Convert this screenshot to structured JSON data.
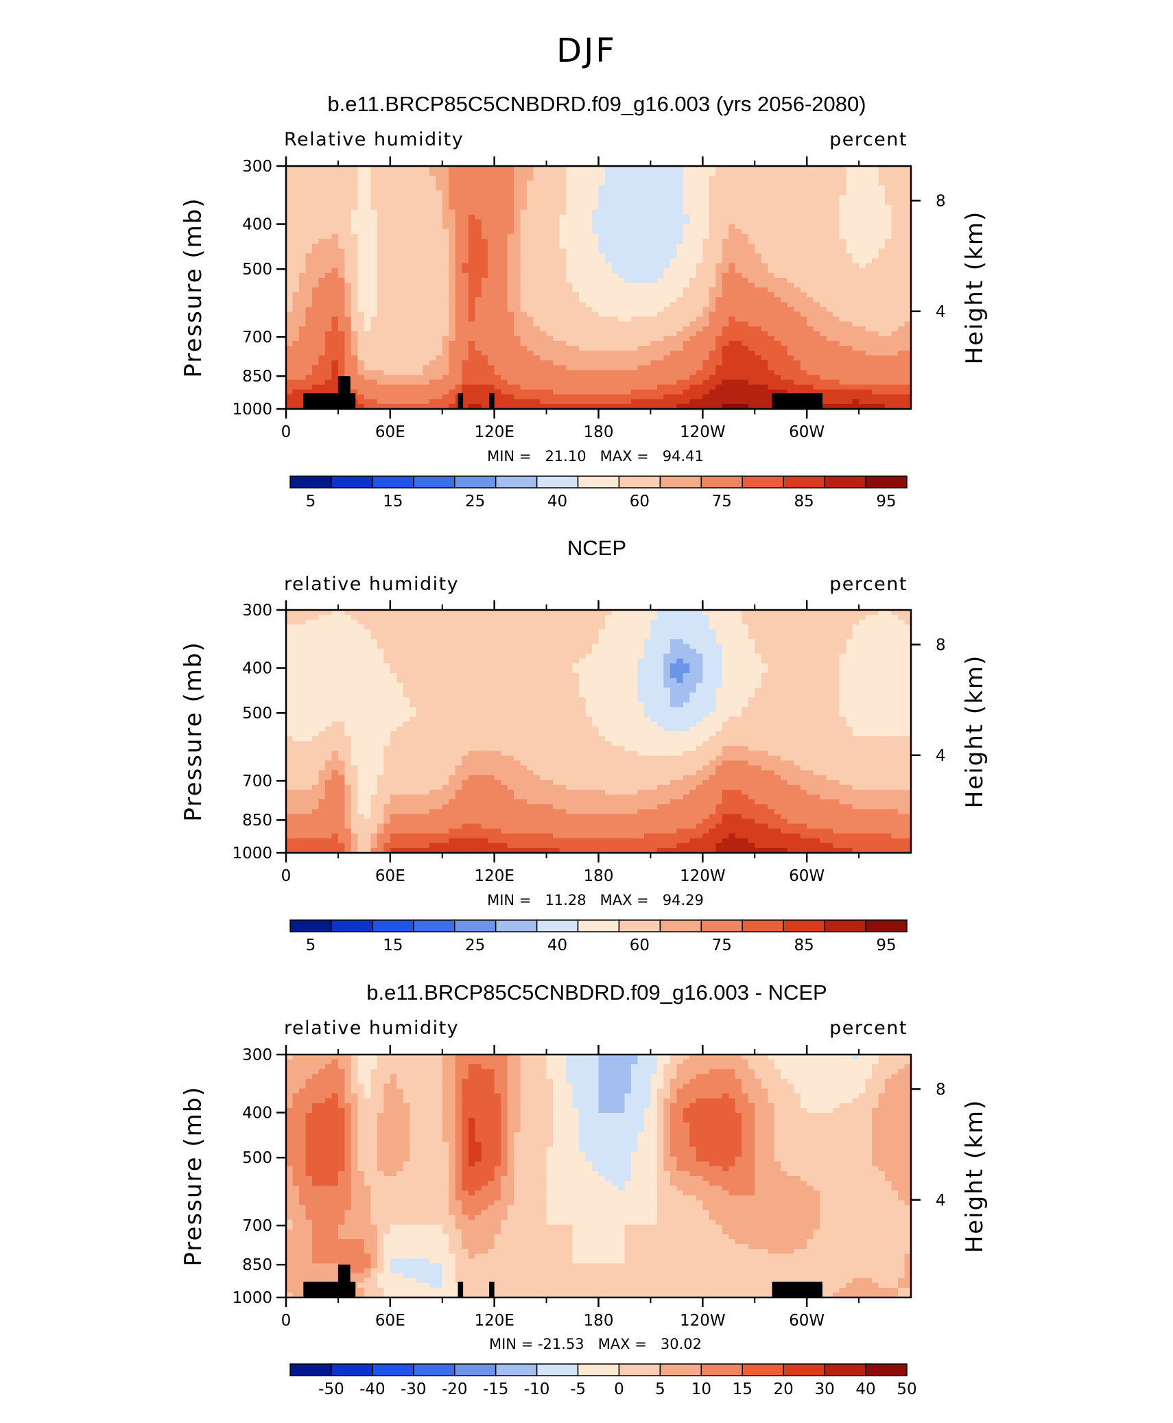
{
  "figure": {
    "title": "DJF",
    "colors": {
      "rh_scale": [
        "#001a8c",
        "#0a35c8",
        "#1f54e6",
        "#3a6fe8",
        "#6c95ea",
        "#a3bff0",
        "#d4e4f8",
        "#fde8d4",
        "#fbcdb0",
        "#f6ab88",
        "#f08660",
        "#e7603a",
        "#d63d1c",
        "#b5220f",
        "#8a0e06"
      ],
      "diff_scale": [
        "#001a8c",
        "#0a35c8",
        "#1f54e6",
        "#3a6fe8",
        "#6c95ea",
        "#a3bff0",
        "#d4e4f8",
        "#fde8d4",
        "#fbcdb0",
        "#f6ab88",
        "#f08660",
        "#e7603a",
        "#d63d1c",
        "#b5220f",
        "#8a0e06"
      ]
    }
  },
  "panels": [
    {
      "title": "b.e11.BRCP85C5CNBDRD.f09_g16.003 (yrs 2056-2080)",
      "left_label": "Relative humidity",
      "right_label": "percent",
      "y_axis_label": "Pressure (mb)",
      "y2_axis_label": "Height (km)",
      "min_max": "MIN =   21.10   MAX =   94.41",
      "colorbar_labels": [
        "5",
        "15",
        "25",
        "40",
        "60",
        "75",
        "85",
        "95"
      ]
    },
    {
      "title": "NCEP",
      "left_label": "relative humidity",
      "right_label": "percent",
      "y_axis_label": "Pressure (mb)",
      "y2_axis_label": "Height (km)",
      "min_max": "MIN =   11.28   MAX =   94.29",
      "colorbar_labels": [
        "5",
        "15",
        "25",
        "40",
        "60",
        "75",
        "85",
        "95"
      ]
    },
    {
      "title": "b.e11.BRCP85C5CNBDRD.f09_g16.003 - NCEP",
      "left_label": "relative humidity",
      "right_label": "percent",
      "y_axis_label": "Pressure (mb)",
      "y2_axis_label": "Height (km)",
      "min_max": "MIN = -21.53   MAX =   30.02",
      "colorbar_labels": [
        "-50",
        "-40",
        "-30",
        "-20",
        "-15",
        "-10",
        "-5",
        "0",
        "5",
        "10",
        "15",
        "20",
        "30",
        "40",
        "50"
      ]
    }
  ],
  "chart_data": [
    {
      "type": "heatmap",
      "title": "b.e11.BRCP85C5CNBDRD.f09_g16.003 (yrs 2056-2080)",
      "xlabel": "",
      "ylabel": "Pressure (mb)",
      "y2label": "Height (km)",
      "x_ticks": [
        "0",
        "60E",
        "120E",
        "180",
        "120W",
        "60W"
      ],
      "x_tick_values": [
        0,
        60,
        120,
        180,
        240,
        300
      ],
      "xlim": [
        0,
        360
      ],
      "y_ticks": [
        "300",
        "400",
        "500",
        "700",
        "850",
        "1000"
      ],
      "y_tick_values": [
        300,
        400,
        500,
        700,
        850,
        1000
      ],
      "ylim": [
        1000,
        300
      ],
      "y_scale": "log",
      "y2_ticks": [
        "4",
        "8"
      ],
      "y2_tick_values": [
        4,
        8
      ],
      "min": 21.1,
      "max": 94.41,
      "contour_levels": [
        5,
        10,
        15,
        20,
        25,
        30,
        40,
        50,
        60,
        65,
        75,
        80,
        85,
        90,
        95
      ],
      "longitudes": [
        0,
        15,
        30,
        45,
        60,
        75,
        90,
        105,
        120,
        135,
        150,
        165,
        180,
        195,
        210,
        225,
        240,
        255,
        270,
        285,
        300,
        315,
        330,
        345
      ],
      "pressure_levels": [
        1000,
        925,
        850,
        700,
        600,
        500,
        400,
        300
      ],
      "values": [
        [
          84,
          86,
          88,
          80,
          76,
          77,
          80,
          86,
          85,
          84,
          83,
          82,
          82,
          83,
          85,
          86,
          88,
          91,
          90,
          89,
          87,
          87,
          88,
          86
        ],
        [
          80,
          82,
          84,
          74,
          70,
          70,
          72,
          84,
          82,
          78,
          76,
          74,
          74,
          75,
          77,
          80,
          84,
          88,
          88,
          86,
          83,
          81,
          82,
          80
        ],
        [
          72,
          76,
          82,
          62,
          60,
          60,
          63,
          78,
          76,
          70,
          68,
          66,
          66,
          66,
          68,
          72,
          78,
          85,
          83,
          80,
          76,
          72,
          70,
          70
        ],
        [
          62,
          68,
          80,
          50,
          56,
          56,
          58,
          75,
          72,
          64,
          60,
          58,
          56,
          56,
          58,
          61,
          67,
          80,
          78,
          74,
          68,
          64,
          62,
          60
        ],
        [
          58,
          66,
          74,
          46,
          54,
          54,
          56,
          76,
          72,
          60,
          56,
          52,
          48,
          45,
          46,
          52,
          58,
          72,
          70,
          66,
          62,
          58,
          56,
          56
        ],
        [
          56,
          62,
          66,
          44,
          56,
          54,
          56,
          78,
          74,
          58,
          54,
          48,
          42,
          38,
          36,
          42,
          52,
          66,
          62,
          58,
          56,
          54,
          50,
          52
        ],
        [
          54,
          58,
          58,
          44,
          58,
          56,
          58,
          76,
          74,
          60,
          56,
          46,
          38,
          34,
          32,
          36,
          46,
          60,
          58,
          56,
          54,
          52,
          44,
          48
        ],
        [
          56,
          58,
          60,
          48,
          60,
          58,
          62,
          72,
          72,
          62,
          58,
          48,
          42,
          36,
          34,
          38,
          46,
          56,
          56,
          56,
          56,
          54,
          46,
          52
        ]
      ]
    },
    {
      "type": "heatmap",
      "title": "NCEP",
      "xlabel": "",
      "ylabel": "Pressure (mb)",
      "y2label": "Height (km)",
      "x_ticks": [
        "0",
        "60E",
        "120E",
        "180",
        "120W",
        "60W"
      ],
      "x_tick_values": [
        0,
        60,
        120,
        180,
        240,
        300
      ],
      "xlim": [
        0,
        360
      ],
      "y_ticks": [
        "300",
        "400",
        "500",
        "700",
        "850",
        "1000"
      ],
      "y_tick_values": [
        300,
        400,
        500,
        700,
        850,
        1000
      ],
      "ylim": [
        1000,
        300
      ],
      "y_scale": "log",
      "y2_ticks": [
        "4",
        "8"
      ],
      "y2_tick_values": [
        4,
        8
      ],
      "min": 11.28,
      "max": 94.29,
      "contour_levels": [
        5,
        10,
        15,
        20,
        25,
        30,
        40,
        50,
        60,
        65,
        75,
        80,
        85,
        90,
        95
      ],
      "longitudes": [
        0,
        15,
        30,
        45,
        60,
        75,
        90,
        105,
        120,
        135,
        150,
        165,
        180,
        195,
        210,
        225,
        240,
        255,
        270,
        285,
        300,
        315,
        330,
        345
      ],
      "pressure_levels": [
        1000,
        925,
        850,
        700,
        600,
        500,
        400,
        300
      ],
      "values": [
        [
          80,
          80,
          80,
          56,
          82,
          82,
          84,
          86,
          84,
          82,
          82,
          80,
          80,
          80,
          80,
          82,
          84,
          88,
          86,
          86,
          84,
          82,
          80,
          80
        ],
        [
          74,
          74,
          76,
          52,
          76,
          76,
          78,
          80,
          78,
          76,
          76,
          74,
          74,
          74,
          76,
          78,
          80,
          86,
          84,
          82,
          80,
          78,
          76,
          76
        ],
        [
          66,
          66,
          72,
          48,
          66,
          66,
          68,
          74,
          72,
          68,
          68,
          66,
          66,
          66,
          68,
          70,
          74,
          82,
          80,
          76,
          72,
          70,
          68,
          68
        ],
        [
          58,
          58,
          70,
          42,
          56,
          56,
          58,
          66,
          66,
          62,
          60,
          58,
          58,
          56,
          58,
          60,
          64,
          74,
          70,
          66,
          62,
          60,
          58,
          58
        ],
        [
          52,
          52,
          60,
          40,
          52,
          52,
          54,
          60,
          60,
          58,
          56,
          54,
          52,
          50,
          48,
          48,
          52,
          62,
          60,
          58,
          56,
          54,
          52,
          52
        ],
        [
          46,
          44,
          48,
          42,
          48,
          50,
          54,
          56,
          56,
          56,
          54,
          52,
          48,
          44,
          38,
          30,
          36,
          48,
          52,
          54,
          54,
          52,
          46,
          46
        ],
        [
          44,
          42,
          40,
          44,
          50,
          52,
          54,
          56,
          56,
          56,
          54,
          50,
          48,
          44,
          36,
          22,
          28,
          42,
          48,
          52,
          54,
          52,
          42,
          40
        ],
        [
          52,
          52,
          50,
          52,
          56,
          58,
          58,
          58,
          58,
          58,
          58,
          56,
          52,
          48,
          42,
          36,
          40,
          48,
          54,
          58,
          60,
          58,
          52,
          50
        ]
      ]
    },
    {
      "type": "heatmap",
      "title": "b.e11.BRCP85C5CNBDRD.f09_g16.003 - NCEP",
      "xlabel": "",
      "ylabel": "Pressure (mb)",
      "y2label": "Height (km)",
      "x_ticks": [
        "0",
        "60E",
        "120E",
        "180",
        "120W",
        "60W"
      ],
      "x_tick_values": [
        0,
        60,
        120,
        180,
        240,
        300
      ],
      "xlim": [
        0,
        360
      ],
      "y_ticks": [
        "300",
        "400",
        "500",
        "700",
        "850",
        "1000"
      ],
      "y_tick_values": [
        300,
        400,
        500,
        700,
        850,
        1000
      ],
      "ylim": [
        1000,
        300
      ],
      "y_scale": "log",
      "y2_ticks": [
        "4",
        "8"
      ],
      "y2_tick_values": [
        4,
        8
      ],
      "min": -21.53,
      "max": 30.02,
      "contour_levels": [
        -50,
        -40,
        -30,
        -20,
        -15,
        -10,
        -5,
        0,
        5,
        10,
        15,
        20,
        30,
        40,
        50
      ],
      "longitudes": [
        0,
        15,
        30,
        45,
        60,
        75,
        90,
        105,
        120,
        135,
        150,
        165,
        180,
        195,
        210,
        225,
        240,
        255,
        270,
        285,
        300,
        315,
        330,
        345
      ],
      "pressure_levels": [
        1000,
        925,
        850,
        700,
        600,
        500,
        400,
        300
      ],
      "values": [
        [
          4,
          6,
          8,
          6,
          -2,
          -3,
          -4,
          0,
          1,
          2,
          1,
          2,
          2,
          3,
          5,
          4,
          4,
          3,
          4,
          3,
          3,
          5,
          8,
          6
        ],
        [
          6,
          8,
          8,
          4,
          -4,
          -5,
          -6,
          4,
          4,
          2,
          0,
          0,
          0,
          1,
          1,
          2,
          4,
          2,
          4,
          4,
          3,
          3,
          6,
          4
        ],
        [
          6,
          10,
          10,
          14,
          -6,
          -6,
          -5,
          4,
          4,
          2,
          0,
          0,
          0,
          0,
          0,
          2,
          4,
          3,
          3,
          4,
          4,
          2,
          2,
          2
        ],
        [
          4,
          10,
          10,
          8,
          0,
          0,
          0,
          9,
          6,
          2,
          0,
          0,
          -2,
          0,
          0,
          1,
          3,
          6,
          8,
          8,
          6,
          4,
          4,
          2
        ],
        [
          6,
          14,
          14,
          6,
          2,
          2,
          2,
          16,
          12,
          2,
          0,
          -2,
          -4,
          -5,
          -2,
          4,
          6,
          10,
          10,
          8,
          6,
          4,
          4,
          4
        ],
        [
          10,
          18,
          18,
          2,
          8,
          4,
          2,
          22,
          18,
          2,
          0,
          -4,
          -6,
          -6,
          -2,
          12,
          16,
          18,
          10,
          4,
          2,
          2,
          4,
          6
        ],
        [
          10,
          16,
          18,
          0,
          8,
          4,
          4,
          20,
          18,
          4,
          2,
          -4,
          -10,
          -10,
          -4,
          14,
          18,
          18,
          10,
          4,
          0,
          0,
          2,
          8
        ],
        [
          4,
          6,
          10,
          -4,
          4,
          0,
          4,
          14,
          14,
          4,
          0,
          -8,
          -10,
          -12,
          -8,
          2,
          6,
          8,
          2,
          -2,
          -4,
          -4,
          -6,
          2
        ]
      ]
    }
  ]
}
